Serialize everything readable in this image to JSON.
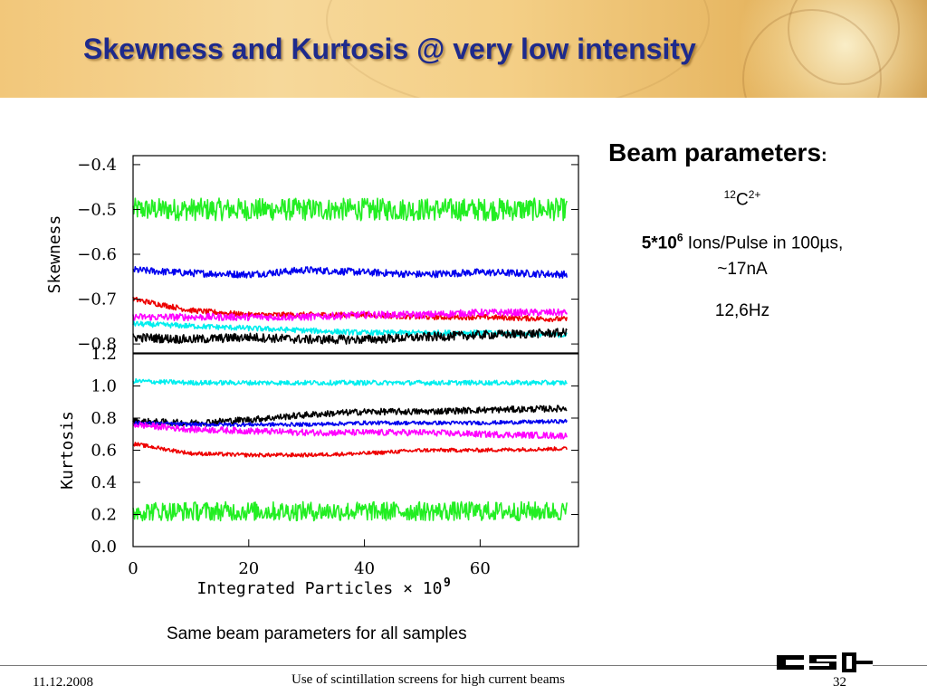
{
  "slide": {
    "title": "Skewness and Kurtosis @ very low intensity",
    "caption": "Same beam parameters for all samples",
    "footer_date": "11.12.2008",
    "footer_text": "Use of scintillation screens for high current beams",
    "page_number": "32",
    "logo_text": "GSI"
  },
  "beam": {
    "heading": "Beam parameters",
    "colon": ":",
    "ion_mass": "12",
    "ion_symbol": "C",
    "ion_charge": "2+",
    "intensity_base": "5*10",
    "intensity_exp": "6",
    "intensity_rest": " Ions/Pulse in 100µs,",
    "current": "~17nA",
    "frequency": "12,6Hz"
  },
  "colors": {
    "title": "#1e2a8c",
    "green": "#22ee22",
    "blue": "#0000ee",
    "red": "#ee0000",
    "magenta": "#ff00ff",
    "cyan": "#00eeee",
    "black": "#000000"
  },
  "chart_data": [
    {
      "type": "line",
      "ylabel": "Skewness",
      "xlabel": "",
      "xlim": [
        0,
        77
      ],
      "ylim": [
        -0.82,
        -0.38
      ],
      "yticks": [
        "−0.4",
        "−0.5",
        "−0.6",
        "−0.7",
        "−0.8"
      ],
      "ytick_values": [
        -0.4,
        -0.5,
        -0.6,
        -0.7,
        -0.8
      ],
      "grid": false,
      "series": [
        {
          "color": "green",
          "x": [
            0,
            10,
            20,
            30,
            40,
            50,
            60,
            75
          ],
          "values": [
            -0.5,
            -0.5,
            -0.5,
            -0.5,
            -0.5,
            -0.5,
            -0.5,
            -0.5
          ],
          "noise": 0.025
        },
        {
          "color": "blue",
          "x": [
            0,
            10,
            20,
            30,
            40,
            50,
            60,
            75
          ],
          "values": [
            -0.635,
            -0.642,
            -0.645,
            -0.635,
            -0.64,
            -0.645,
            -0.64,
            -0.645
          ],
          "noise": 0.008
        },
        {
          "color": "red",
          "x": [
            0,
            10,
            20,
            30,
            40,
            50,
            60,
            75
          ],
          "values": [
            -0.7,
            -0.725,
            -0.735,
            -0.735,
            -0.735,
            -0.74,
            -0.74,
            -0.745
          ],
          "noise": 0.006
        },
        {
          "color": "magenta",
          "x": [
            0,
            10,
            20,
            30,
            40,
            50,
            60,
            75
          ],
          "values": [
            -0.74,
            -0.74,
            -0.74,
            -0.74,
            -0.735,
            -0.735,
            -0.73,
            -0.73
          ],
          "noise": 0.008
        },
        {
          "color": "cyan",
          "x": [
            0,
            10,
            20,
            30,
            40,
            50,
            60,
            75
          ],
          "values": [
            -0.755,
            -0.76,
            -0.765,
            -0.77,
            -0.775,
            -0.775,
            -0.775,
            -0.78
          ],
          "noise": 0.006
        },
        {
          "color": "black",
          "x": [
            0,
            10,
            20,
            30,
            40,
            50,
            60,
            75
          ],
          "values": [
            -0.785,
            -0.79,
            -0.785,
            -0.79,
            -0.79,
            -0.785,
            -0.78,
            -0.775
          ],
          "noise": 0.01
        }
      ]
    },
    {
      "type": "line",
      "ylabel": "Kurtosis",
      "xlabel": "Integrated Particles × 10",
      "xlabel_exp": "9",
      "xlim": [
        0,
        77
      ],
      "ylim": [
        0.0,
        1.2
      ],
      "xticks": [
        "0",
        "20",
        "40",
        "60"
      ],
      "xtick_values": [
        0,
        20,
        40,
        60
      ],
      "yticks": [
        "1.2",
        "1.0",
        "0.8",
        "0.6",
        "0.4",
        "0.2",
        "0.0"
      ],
      "ytick_values": [
        1.2,
        1.0,
        0.8,
        0.6,
        0.4,
        0.2,
        0.0
      ],
      "grid": false,
      "series": [
        {
          "color": "cyan",
          "x": [
            0,
            10,
            20,
            30,
            40,
            50,
            60,
            75
          ],
          "values": [
            1.03,
            1.02,
            1.02,
            1.02,
            1.02,
            1.02,
            1.02,
            1.02
          ],
          "noise": 0.015
        },
        {
          "color": "black",
          "x": [
            0,
            10,
            20,
            30,
            40,
            50,
            60,
            75
          ],
          "values": [
            0.78,
            0.77,
            0.79,
            0.82,
            0.84,
            0.84,
            0.85,
            0.86
          ],
          "noise": 0.02
        },
        {
          "color": "blue",
          "x": [
            0,
            10,
            20,
            30,
            40,
            50,
            60,
            75
          ],
          "values": [
            0.77,
            0.76,
            0.76,
            0.76,
            0.77,
            0.77,
            0.77,
            0.78
          ],
          "noise": 0.012
        },
        {
          "color": "magenta",
          "x": [
            0,
            10,
            20,
            30,
            40,
            50,
            60,
            75
          ],
          "values": [
            0.76,
            0.73,
            0.72,
            0.71,
            0.71,
            0.71,
            0.7,
            0.69
          ],
          "noise": 0.02
        },
        {
          "color": "red",
          "x": [
            0,
            10,
            20,
            30,
            40,
            50,
            60,
            75
          ],
          "values": [
            0.64,
            0.58,
            0.57,
            0.57,
            0.58,
            0.6,
            0.6,
            0.61
          ],
          "noise": 0.012
        },
        {
          "color": "green",
          "x": [
            0,
            10,
            20,
            30,
            40,
            50,
            60,
            75
          ],
          "values": [
            0.22,
            0.22,
            0.22,
            0.22,
            0.22,
            0.22,
            0.22,
            0.22
          ],
          "noise": 0.06
        }
      ]
    }
  ]
}
